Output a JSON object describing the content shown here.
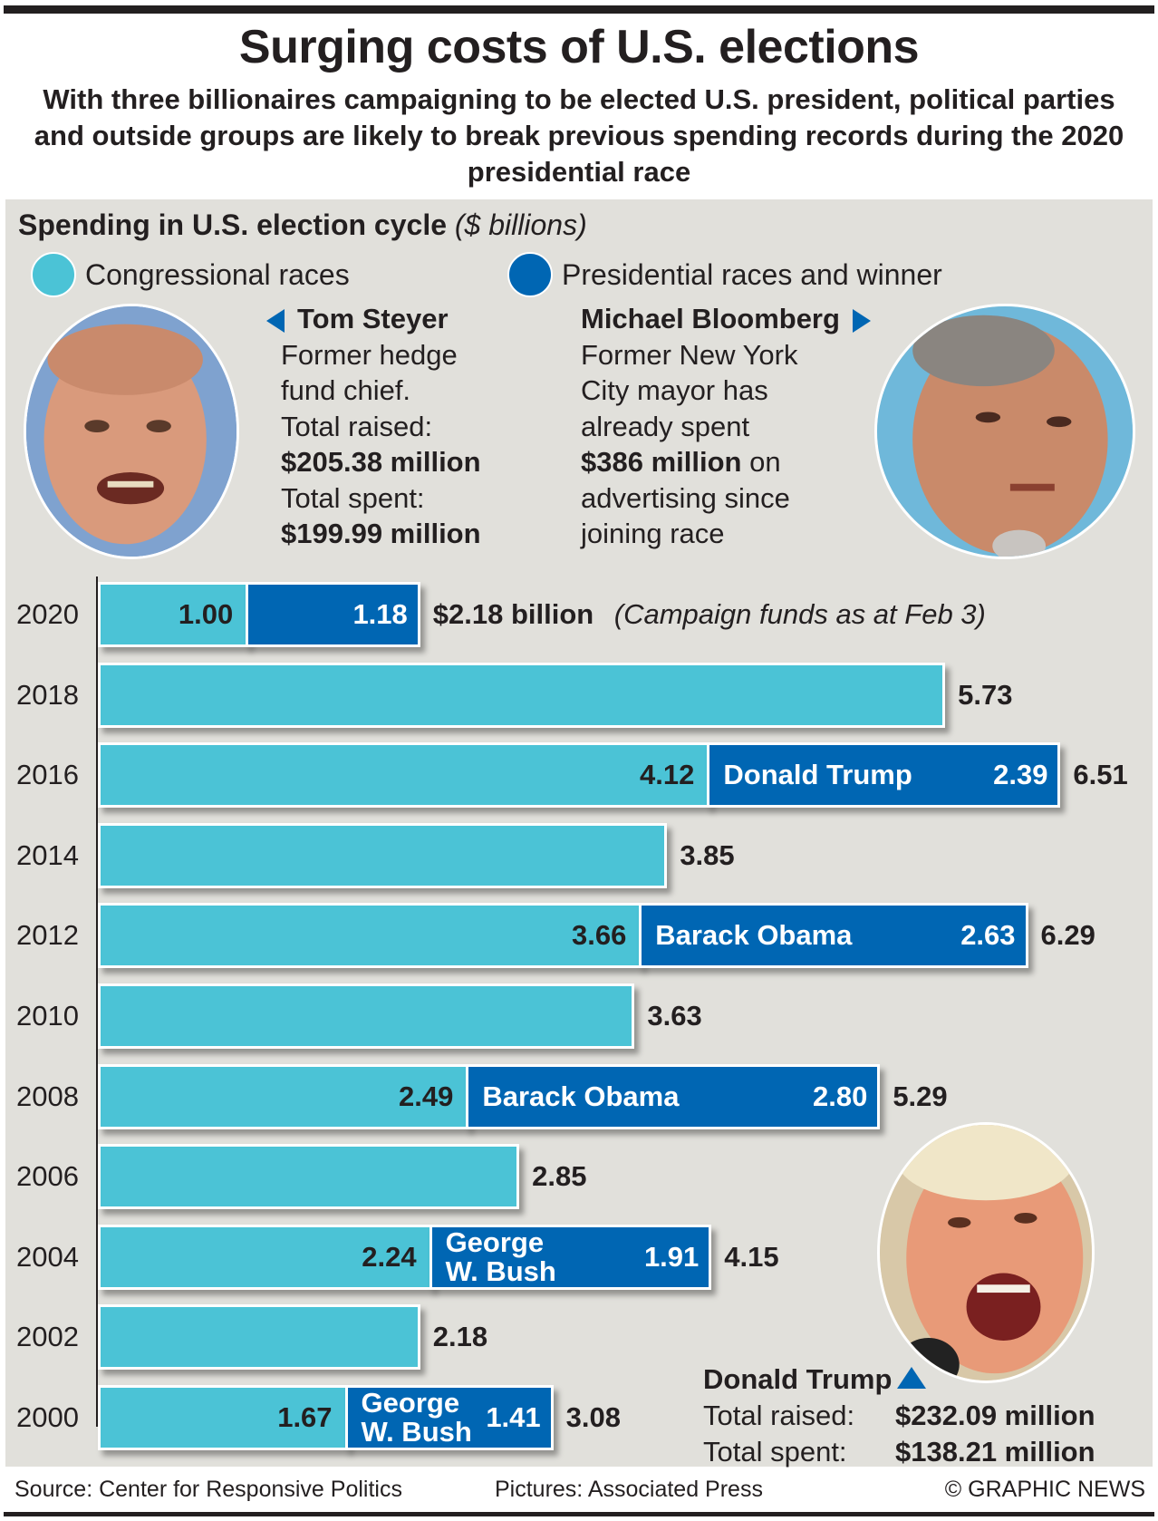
{
  "header": {
    "title": "Surging costs of U.S. elections",
    "subtitle": "With three billionaires campaigning to be elected U.S. president, political parties and outside groups are likely to break previous spending records during the 2020 presidential race"
  },
  "section": {
    "title": "Spending in U.S. election cycle",
    "unit": "($ billions)"
  },
  "legend": [
    {
      "label": "Congressional races",
      "color": "#4bc3d6"
    },
    {
      "label": "Presidential races and winner",
      "color": "#0066b3"
    }
  ],
  "candidates": {
    "steyer": {
      "name": "Tom Steyer",
      "lines": [
        "Former hedge",
        "fund chief.",
        "Total raised:"
      ],
      "raised": "$205.38 million",
      "spent_label": "Total spent:",
      "spent": "$199.99 million"
    },
    "bloomberg": {
      "name": "Michael Bloomberg",
      "lines": [
        "Former New York",
        "City mayor has",
        "already spent"
      ],
      "amount": "$386 million",
      "amount_suffix": " on",
      "tail": [
        "advertising since",
        "joining race"
      ]
    },
    "trump": {
      "name": "Donald Trump",
      "raised_label": "Total raised:",
      "raised": "$232.09 million",
      "spent_label": "Total spent:",
      "spent": "$138.21 million"
    }
  },
  "chart_data": {
    "type": "bar",
    "orientation": "horizontal",
    "stacked": true,
    "title": "Spending in U.S. election cycle",
    "unit": "$ billions",
    "categories": [
      "2020",
      "2018",
      "2016",
      "2014",
      "2012",
      "2010",
      "2008",
      "2006",
      "2004",
      "2002",
      "2000"
    ],
    "series": [
      {
        "name": "Congressional races",
        "color": "#4bc3d6",
        "values": [
          1.0,
          5.73,
          4.12,
          3.85,
          3.66,
          3.63,
          2.49,
          2.85,
          2.24,
          2.18,
          1.67
        ]
      },
      {
        "name": "Presidential races and winner",
        "color": "#0066b3",
        "values": [
          1.18,
          null,
          2.39,
          null,
          2.63,
          null,
          2.8,
          null,
          1.91,
          null,
          1.41
        ]
      }
    ],
    "segment_labels": {
      "congressional": [
        "1.00",
        "",
        "4.12",
        "",
        "3.66",
        "",
        "2.49",
        "",
        "2.24",
        "",
        "1.67"
      ],
      "presidential": [
        "1.18",
        "",
        "2.39",
        "",
        "2.63",
        "",
        "2.80",
        "",
        "1.91",
        "",
        "1.41"
      ]
    },
    "winners": [
      "",
      "",
      "Donald Trump",
      "",
      "Barack Obama",
      "",
      "Barack Obama",
      "",
      "George W. Bush",
      "",
      "George W. Bush"
    ],
    "winners_lines": [
      [],
      [],
      [
        "Donald Trump"
      ],
      [],
      [
        "Barack Obama"
      ],
      [],
      [
        "Barack Obama"
      ],
      [],
      [
        "George",
        "W. Bush"
      ],
      [],
      [
        "George",
        "W. Bush"
      ]
    ],
    "totals": [
      "$2.18 billion",
      "5.73",
      "6.51",
      "3.85",
      "6.29",
      "3.63",
      "5.29",
      "2.85",
      "4.15",
      "2.18",
      "3.08"
    ],
    "annotations": [
      {
        "category": "2020",
        "text": "(Campaign funds as at Feb 3)"
      }
    ],
    "xlim": [
      0,
      7
    ],
    "grid": false,
    "legend_position": "top-left"
  },
  "footer": {
    "source": "Source: Center for Responsive Politics",
    "pictures": "Pictures: Associated Press",
    "credit": "© GRAPHIC NEWS"
  }
}
